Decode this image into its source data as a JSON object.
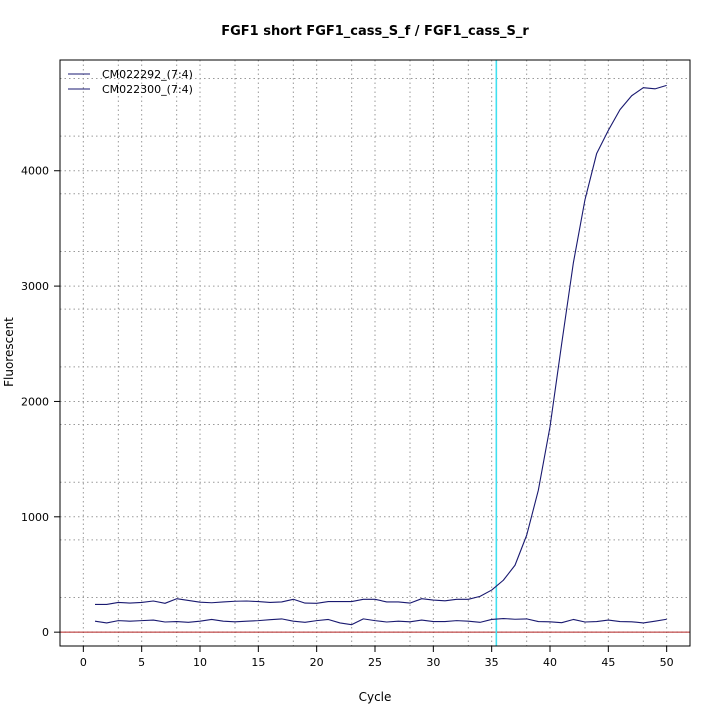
{
  "chart_data": {
    "type": "line",
    "title": "FGF1 short FGF1_cass_S_f / FGF1_cass_S_r",
    "xlabel": "Cycle",
    "ylabel": "Fluorescent",
    "xlim": [
      -2,
      52
    ],
    "ylim": [
      -120,
      4960
    ],
    "x_ticks": [
      0,
      5,
      10,
      15,
      20,
      25,
      30,
      35,
      40,
      45,
      50
    ],
    "y_ticks": [
      0,
      1000,
      2000,
      3000,
      4000
    ],
    "x_grid": [
      3,
      8,
      13,
      18,
      23,
      28,
      33,
      38,
      43,
      48
    ],
    "y_grid": [
      300,
      800,
      1300,
      1800,
      2300,
      2800,
      3300,
      3800,
      4300,
      4800
    ],
    "grid": true,
    "legend_position": "top-left",
    "threshold_x": 35.4,
    "baseline_y": 0,
    "colors": {
      "series": "#191970",
      "threshold": "#40e0f0",
      "baseline": "#b22222",
      "grid": "#9a9a9a"
    },
    "x": [
      1,
      2,
      3,
      4,
      5,
      6,
      7,
      8,
      9,
      10,
      11,
      12,
      13,
      14,
      15,
      16,
      17,
      18,
      19,
      20,
      21,
      22,
      23,
      24,
      25,
      26,
      27,
      28,
      29,
      30,
      31,
      32,
      33,
      34,
      35,
      36,
      37,
      38,
      39,
      40,
      41,
      42,
      43,
      44,
      45,
      46,
      47,
      48,
      49,
      50
    ],
    "series": [
      {
        "name": "CM022292_(7:4)",
        "values": [
          240,
          240,
          258,
          252,
          258,
          270,
          250,
          290,
          275,
          260,
          255,
          262,
          268,
          270,
          265,
          258,
          262,
          285,
          252,
          250,
          265,
          265,
          265,
          285,
          285,
          262,
          262,
          252,
          290,
          278,
          272,
          285,
          285,
          310,
          365,
          450,
          580,
          840,
          1230,
          1780,
          2500,
          3200,
          3750,
          4150,
          4350,
          4530,
          4650,
          4720,
          4710,
          4740
        ]
      },
      {
        "name": "CM022300_(7:4)",
        "values": [
          95,
          80,
          100,
          95,
          100,
          105,
          88,
          92,
          85,
          95,
          110,
          95,
          90,
          95,
          100,
          108,
          115,
          95,
          85,
          100,
          110,
          80,
          65,
          115,
          100,
          88,
          95,
          90,
          105,
          92,
          92,
          100,
          95,
          85,
          110,
          118,
          112,
          115,
          92,
          90,
          82,
          110,
          88,
          92,
          105,
          92,
          90,
          80,
          95,
          112
        ]
      }
    ]
  }
}
